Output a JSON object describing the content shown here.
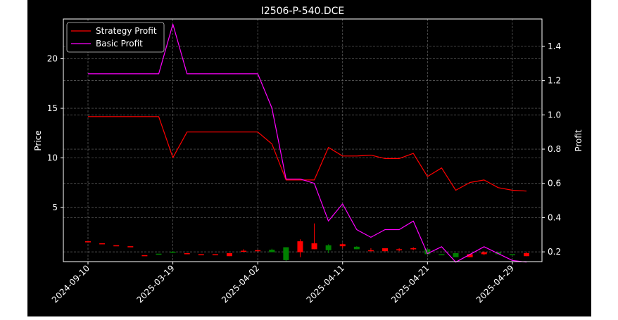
{
  "chart_data": {
    "type": "line",
    "title": "I2506-P-540.DCE",
    "ylabel_left": "Price",
    "ylabel_right": "Profit",
    "grid": true,
    "legend_position": "top-left",
    "x_tick_labels": [
      "2024-09-10",
      "2025-03-19",
      "2025-04-02",
      "2025-04-11",
      "2025-04-21",
      "2025-04-29"
    ],
    "x_tick_positions": [
      0,
      6,
      12,
      18,
      24,
      30
    ],
    "y_left": {
      "ylim": [
        -0.45,
        24.0
      ],
      "ticks": [
        5,
        10,
        15,
        20
      ]
    },
    "y_right": {
      "ylim": [
        0.143,
        1.56
      ],
      "ticks": [
        0.2,
        0.4,
        0.6,
        0.8,
        1.0,
        1.2,
        1.4
      ]
    },
    "series": [
      {
        "name": "Strategy Profit",
        "color": "#ff0000",
        "axis": "right",
        "values": [
          0.99,
          0.99,
          0.99,
          0.99,
          0.99,
          0.99,
          0.75,
          0.9,
          0.9,
          0.9,
          0.9,
          0.9,
          0.9,
          0.83,
          0.62,
          0.62,
          0.62,
          0.81,
          0.76,
          0.76,
          0.765,
          0.745,
          0.745,
          0.775,
          0.64,
          0.69,
          0.56,
          0.605,
          0.62,
          0.575,
          0.56,
          0.555
        ]
      },
      {
        "name": "Basic Profit",
        "color": "#ff00ff",
        "axis": "right",
        "values": [
          1.24,
          1.24,
          1.24,
          1.24,
          1.24,
          1.24,
          1.53,
          1.24,
          1.24,
          1.24,
          1.24,
          1.24,
          1.24,
          1.04,
          0.625,
          0.625,
          0.6,
          0.38,
          0.48,
          0.33,
          0.285,
          0.33,
          0.33,
          0.38,
          0.19,
          0.23,
          0.14,
          0.185,
          0.23,
          0.19,
          0.15,
          0.14
        ]
      }
    ],
    "candles": {
      "axis": "left",
      "up_color": "#ff0000",
      "down_color": "#008000",
      "ohlc": [
        [
          1.6,
          1.6,
          1.6,
          1.6
        ],
        [
          1.4,
          1.4,
          1.4,
          1.4
        ],
        [
          1.2,
          1.2,
          1.2,
          1.2
        ],
        [
          1.1,
          1.1,
          1.1,
          1.1
        ],
        [
          0.2,
          0.2,
          0.2,
          0.2
        ],
        [
          0.35,
          0.35,
          0.35,
          0.3
        ],
        [
          0.55,
          0.6,
          0.4,
          0.45
        ],
        [
          0.4,
          0.4,
          0.4,
          0.4
        ],
        [
          0.3,
          0.3,
          0.3,
          0.3
        ],
        [
          0.3,
          0.3,
          0.3,
          0.3
        ],
        [
          0.1,
          0.4,
          0.1,
          0.4
        ],
        [
          0.65,
          0.8,
          0.6,
          0.65
        ],
        [
          0.7,
          0.75,
          0.7,
          0.7
        ],
        [
          0.75,
          0.85,
          0.55,
          0.5
        ],
        [
          1.0,
          1.0,
          -0.4,
          -0.3
        ],
        [
          0.5,
          1.8,
          0.0,
          1.6
        ],
        [
          0.8,
          3.4,
          0.8,
          1.4
        ],
        [
          1.2,
          1.3,
          0.4,
          0.7
        ],
        [
          1.1,
          1.4,
          0.9,
          1.3
        ],
        [
          1.05,
          1.1,
          0.8,
          0.8
        ],
        [
          0.7,
          0.9,
          0.6,
          0.7
        ],
        [
          0.6,
          0.9,
          0.6,
          0.9
        ],
        [
          0.7,
          0.9,
          0.6,
          0.8
        ],
        [
          0.8,
          1.0,
          0.7,
          0.9
        ],
        [
          0.8,
          0.8,
          0.3,
          0.3
        ],
        [
          0.3,
          0.3,
          0.2,
          0.2
        ],
        [
          0.4,
          0.4,
          0.1,
          0.0
        ],
        [
          0.0,
          0.25,
          0.0,
          0.3
        ],
        [
          0.3,
          0.6,
          0.2,
          0.5
        ],
        [
          0.5,
          0.5,
          0.3,
          0.3
        ],
        [
          0.3,
          0.3,
          0.2,
          0.2
        ],
        [
          0.1,
          0.5,
          0.1,
          0.4
        ]
      ]
    }
  }
}
